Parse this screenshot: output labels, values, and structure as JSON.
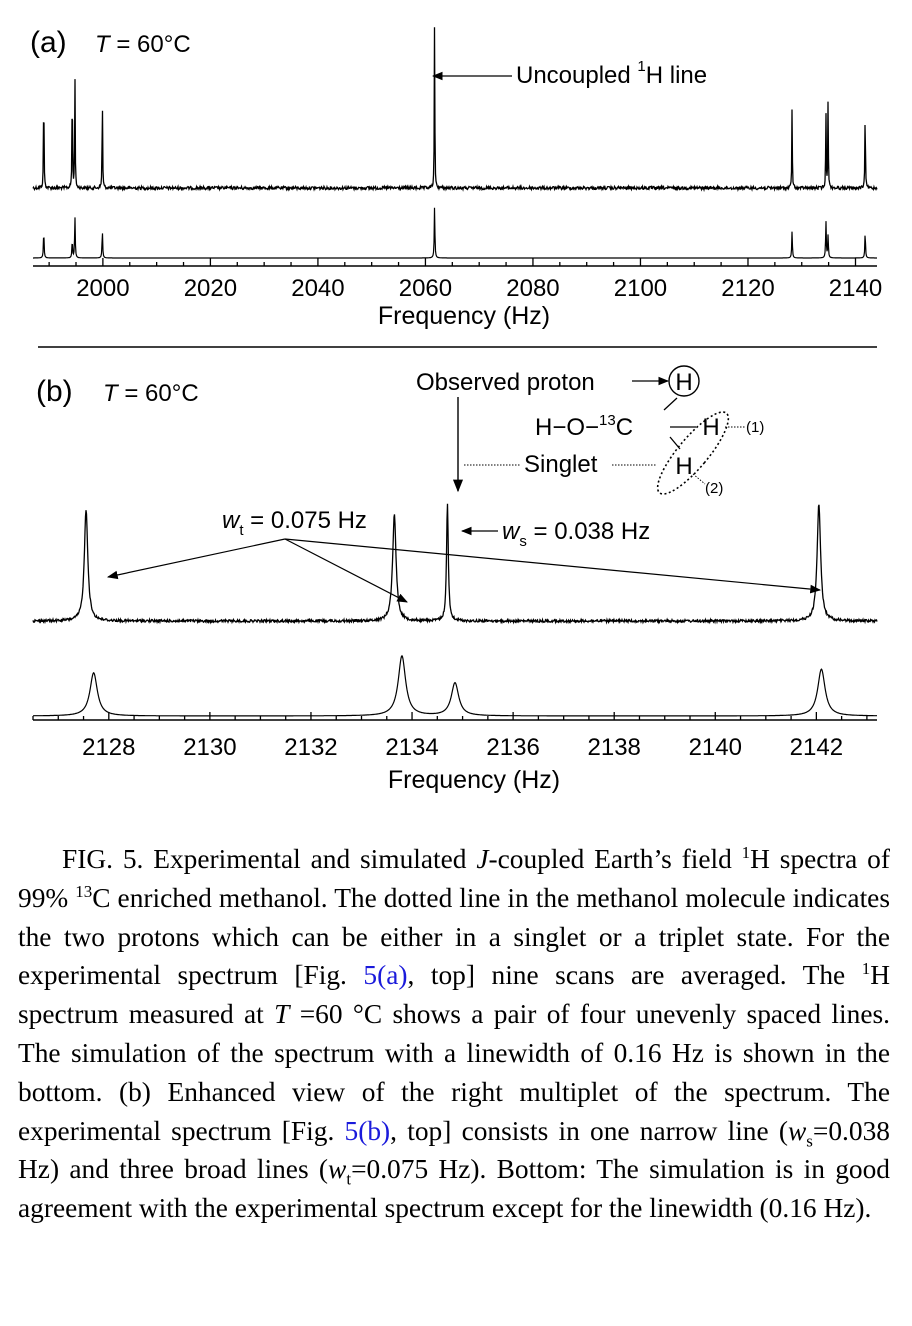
{
  "chart_data": [
    {
      "type": "line",
      "panel_label": "(a)",
      "title_var": "T",
      "title_rest": " = 60°C",
      "xlabel": "Frequency (Hz)",
      "xlim": [
        1987,
        2144
      ],
      "xticks": [
        "2000",
        "2020",
        "2040",
        "2060",
        "2080",
        "2100",
        "2120",
        "2140"
      ],
      "xtick_values": [
        2000,
        2020,
        2040,
        2060,
        2080,
        2100,
        2120,
        2140
      ],
      "series": [
        {
          "role": "experimental",
          "peaks": [
            {
              "x": 1989.0,
              "h": 0.83
            },
            {
              "x": 1994.3,
              "h": 0.85
            },
            {
              "x": 1994.8,
              "h": 0.85
            },
            {
              "x": 1999.9,
              "h": 0.73
            },
            {
              "x": 2061.7,
              "h": 1.25
            },
            {
              "x": 2128.2,
              "h": 0.6
            },
            {
              "x": 2134.5,
              "h": 0.58
            },
            {
              "x": 2134.9,
              "h": 0.68
            },
            {
              "x": 2141.8,
              "h": 0.64
            }
          ]
        },
        {
          "role": "simulated",
          "peaks": [
            {
              "x": 1989.0,
              "h": 0.55
            },
            {
              "x": 1994.3,
              "h": 0.35
            },
            {
              "x": 1994.8,
              "h": 0.8
            },
            {
              "x": 1999.9,
              "h": 0.55
            },
            {
              "x": 2061.7,
              "h": 1.0
            },
            {
              "x": 2128.2,
              "h": 0.52
            },
            {
              "x": 2134.5,
              "h": 0.72
            },
            {
              "x": 2134.9,
              "h": 0.45
            },
            {
              "x": 2141.8,
              "h": 0.52
            }
          ]
        }
      ],
      "annotations": {
        "uncoupled_pre": "Uncoupled ",
        "uncoupled_sup": "1",
        "uncoupled_post": "H line"
      }
    },
    {
      "type": "line",
      "panel_label": "(b)",
      "title_var": "T",
      "title_rest": " = 60°C",
      "xlabel": "Frequency (Hz)",
      "xlim": [
        2126.5,
        2143.2
      ],
      "xticks": [
        "2128",
        "2130",
        "2132",
        "2134",
        "2136",
        "2138",
        "2140",
        "2142"
      ],
      "xtick_values": [
        2128,
        2130,
        2132,
        2134,
        2136,
        2138,
        2140,
        2142
      ],
      "series": [
        {
          "role": "experimental",
          "peaks": [
            {
              "x": 2127.55,
              "h": 1.0,
              "w": 0.075
            },
            {
              "x": 2133.65,
              "h": 0.95,
              "w": 0.075
            },
            {
              "x": 2134.7,
              "h": 1.05,
              "w": 0.038
            },
            {
              "x": 2142.05,
              "h": 1.05,
              "w": 0.075
            }
          ]
        },
        {
          "role": "simulated",
          "peaks": [
            {
              "x": 2127.7,
              "h": 0.72,
              "w": 0.16
            },
            {
              "x": 2133.8,
              "h": 1.0,
              "w": 0.16
            },
            {
              "x": 2134.85,
              "h": 0.55,
              "w": 0.16
            },
            {
              "x": 2142.1,
              "h": 0.78,
              "w": 0.16
            }
          ]
        }
      ],
      "annotations": {
        "observed_proton": "Observed proton",
        "wt_var": "w",
        "wt_sub": "t",
        "wt_rest": " = 0.075 Hz",
        "ws_var": "w",
        "ws_sub": "s",
        "ws_rest": " = 0.038 Hz",
        "singlet": "Singlet",
        "molecule": {
          "H_top": "H",
          "h_o": "H−O−",
          "sup13": "13",
          "C": "C",
          "H1": "H",
          "H2": "H",
          "label1": "(1)",
          "label2": "(2)"
        }
      }
    }
  ],
  "caption": {
    "s1": "FIG. 5. Experimental and simulated ",
    "j": "J",
    "s2": "-coupled Earth’s field ",
    "sup1": "1",
    "s3": "H spectra of 99% ",
    "sup13": "13",
    "s4": "C enriched methanol. The dotted line in the methanol molecule indicates the two protons which can be either in a singlet or a triplet state. For the experimental spectrum [Fig. ",
    "link1": "5(a)",
    "s5": ", top] nine scans are averaged. The ",
    "sup2": "1",
    "s6": "H spectrum measured at ",
    "t": "T",
    "s7": " =60 °C shows a pair of four unevenly spaced lines. The simulation of the spectrum with a linewidth of 0.16 Hz is shown in the bottom. (b) Enhanced view of the right multiplet of the spectrum. The experimental spectrum [Fig. ",
    "link2": "5(b)",
    "s8": ", top] consists in one narrow line (",
    "ws": "w",
    "ws_sub": "s",
    "s9": "=0.038 Hz) and three broad lines (",
    "wt": "w",
    "wt_sub": "t",
    "s10": "=0.075 Hz). Bottom: The simulation is in good agreement with the experimental spectrum except for the linewidth (0.16 Hz)."
  }
}
